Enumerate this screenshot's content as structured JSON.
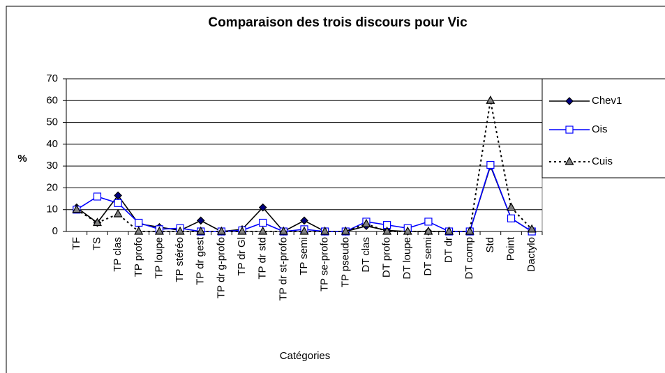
{
  "chart_data": {
    "type": "line",
    "title": "Comparaison des trois discours pour Vic",
    "y_label": "%",
    "x_label": "Catégories",
    "categories": [
      "TF",
      "TS",
      "TP clas",
      "TP profo",
      "TP loupe",
      "TP stéréo",
      "TP dr gest",
      "TP dr g-profo",
      "TP dr Gl",
      "TP dr std",
      "TP dr st-profo",
      "TP semi",
      "TP se-profo",
      "TP pseudo",
      "DT clas",
      "DT profo",
      "DT loupe",
      "DT semi",
      "DT dr",
      "DT comp",
      "Std",
      "Point",
      "Dactylo"
    ],
    "series": [
      {
        "name": "Chev1",
        "color": "#000000",
        "marker_color": "#000080",
        "marker": "diamond",
        "dashed": false,
        "values": [
          11,
          4,
          16.5,
          3.5,
          2,
          0.5,
          5,
          0,
          1,
          11,
          0,
          5,
          0,
          0,
          2.5,
          0.5,
          0,
          0,
          0,
          0,
          30,
          6,
          0
        ]
      },
      {
        "name": "Ois",
        "color": "#0000ff",
        "marker_color": "#ffffff",
        "marker": "square",
        "dashed": false,
        "values": [
          10,
          16,
          13,
          4,
          1,
          1.5,
          0,
          0,
          0.5,
          4,
          0,
          1,
          0,
          0,
          4.5,
          3,
          1.5,
          4.5,
          0,
          0,
          30.5,
          6,
          0
        ]
      },
      {
        "name": "Cuis",
        "color": "#000000",
        "marker_color": "#808080",
        "marker": "triangle",
        "dashed": true,
        "values": [
          10,
          4,
          8,
          0,
          0,
          0,
          0,
          0,
          0,
          0,
          0,
          0,
          0,
          0,
          3.5,
          0,
          0,
          0,
          0,
          0,
          60,
          11,
          1
        ]
      }
    ],
    "ylim": [
      0,
      70
    ],
    "yticks": [
      0,
      10,
      20,
      30,
      40,
      50,
      60,
      70
    ],
    "grid": true,
    "legend": "right"
  }
}
